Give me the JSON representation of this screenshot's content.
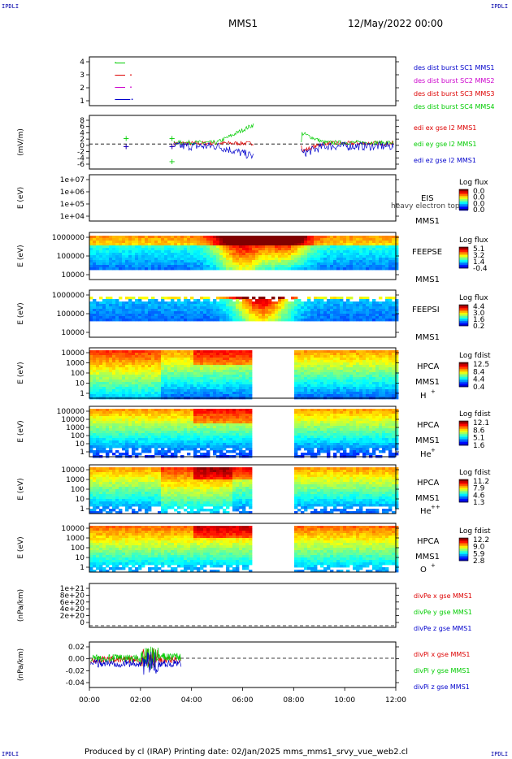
{
  "corners": {
    "tl": "IPDLI",
    "tr": "IPDLI",
    "bl": "IPDLI",
    "br": "IPDLI"
  },
  "header": {
    "title": "MMS1",
    "date": "12/May/2022 00:00"
  },
  "footer": {
    "text": "Produced by cl (IRAP)   Printing date: 02/Jan/2025   mms_mms1_srvy_vue_web2.cl"
  },
  "colors": {
    "red": "#dd0000",
    "green": "#00cc00",
    "blue": "#0000cc",
    "magenta": "#cc00cc",
    "frame": "#000000",
    "label_blue": "#000099"
  },
  "chart_data": [
    {
      "type": "line",
      "id": "dist-burst",
      "ylabel": "",
      "yticks": [
        "4",
        "3",
        "2",
        "1"
      ],
      "ylim": [
        0.5,
        4.5
      ],
      "legend_position": "right",
      "series": [
        {
          "name": "des dist burst SC1 MMS1",
          "color": "#0000cc",
          "value": 1,
          "x": [
            1.0,
            1.4,
            1.6
          ],
          "dot": 1.65
        },
        {
          "name": "des dist burst SC2 MMS2",
          "color": "#cc00cc",
          "value": 2,
          "x": [
            1.0,
            1.4
          ],
          "dot": 1.6
        },
        {
          "name": "des dist burst SC3 MMS3",
          "color": "#dd0000",
          "value": 3,
          "x": [
            1.0,
            1.4
          ],
          "dot": 1.6
        },
        {
          "name": "des dist burst SC4 MMS4",
          "color": "#00cc00",
          "value": 4,
          "x": [
            1.0,
            1.4
          ],
          "dot": 1.0
        }
      ]
    },
    {
      "type": "line",
      "id": "edi-e",
      "ylabel": "(mV/m)",
      "yticks": [
        "8",
        "6",
        "4",
        "2",
        "0",
        "-2",
        "-4",
        "-6"
      ],
      "ylim": [
        -7,
        8
      ],
      "legend_position": "right",
      "series": [
        {
          "name": "edi ex gse l2 MMS1",
          "color": "#dd0000"
        },
        {
          "name": "edi ey gse l2 MMS1",
          "color": "#00cc00"
        },
        {
          "name": "edi ez gse l2 MMS1",
          "color": "#0000cc"
        }
      ]
    },
    {
      "type": "heatmap",
      "id": "eis",
      "ylabel": "E (eV)",
      "yticks": [
        "1e+07",
        "1e+06",
        "1e+05",
        "1e+04"
      ],
      "instrument": [
        "EIS",
        "MMS1"
      ],
      "overlay": "heavy electron top",
      "colorbar_title": "Log flux",
      "colorbar_ticks": [
        "0.0",
        "0.0",
        "0.0",
        "0.0"
      ],
      "empty": true
    },
    {
      "type": "heatmap",
      "id": "feepse",
      "ylabel": "E (eV)",
      "yticks": [
        "1000000",
        "100000",
        "10000"
      ],
      "instrument": [
        "FEEPSE",
        "MMS1"
      ],
      "colorbar_title": "Log flux",
      "colorbar_ticks": [
        "5.1",
        "3.2",
        "1.4",
        "-0.4"
      ]
    },
    {
      "type": "heatmap",
      "id": "feepsi",
      "ylabel": "E (eV)",
      "yticks": [
        "1000000",
        "100000",
        "10000"
      ],
      "instrument": [
        "FEEPSI",
        "MMS1"
      ],
      "colorbar_title": "Log flux",
      "colorbar_ticks": [
        "4.4",
        "3.0",
        "1.6",
        "0.2"
      ]
    },
    {
      "type": "heatmap",
      "id": "hpca-h",
      "ylabel": "E (eV)",
      "yticks": [
        "10000",
        "1000",
        "100",
        "10",
        "1"
      ],
      "instrument": [
        "HPCA",
        "MMS1",
        "H",
        "+"
      ],
      "colorbar_title": "Log fdist",
      "colorbar_ticks": [
        "12.5",
        "8.4",
        "4.4",
        "0.4"
      ],
      "gap": [
        6.3,
        8.0
      ]
    },
    {
      "type": "heatmap",
      "id": "hpca-he",
      "ylabel": "E (eV)",
      "yticks": [
        "100000",
        "10000",
        "1000",
        "100",
        "10",
        "1"
      ],
      "instrument": [
        "HPCA",
        "MMS1",
        "He",
        "+"
      ],
      "colorbar_title": "Log fdist",
      "colorbar_ticks": [
        "12.1",
        "8.6",
        "5.1",
        "1.6"
      ],
      "gap": [
        6.3,
        8.0
      ]
    },
    {
      "type": "heatmap",
      "id": "hpca-hepp",
      "ylabel": "E (eV)",
      "yticks": [
        "10000",
        "1000",
        "100",
        "10",
        "1"
      ],
      "instrument": [
        "HPCA",
        "MMS1",
        "He",
        "++"
      ],
      "colorbar_title": "Log fdist",
      "colorbar_ticks": [
        "11.2",
        "7.9",
        "4.6",
        "1.3"
      ],
      "gap": [
        6.3,
        8.0
      ]
    },
    {
      "type": "heatmap",
      "id": "hpca-o",
      "ylabel": "E (eV)",
      "yticks": [
        "10000",
        "1000",
        "100",
        "10",
        "1"
      ],
      "instrument": [
        "HPCA",
        "MMS1",
        "O",
        "+"
      ],
      "colorbar_title": "Log fdist",
      "colorbar_ticks": [
        "12.2",
        "9.0",
        "5.9",
        "2.8"
      ],
      "gap": [
        6.3,
        8.0
      ]
    },
    {
      "type": "line",
      "id": "divpe",
      "ylabel": "(nPa/km)",
      "yticks": [
        "1e+21",
        "8e+20",
        "6e+20",
        "4e+20",
        "2e+20",
        "0"
      ],
      "ylim": [
        0,
        1e+21
      ],
      "legend_position": "right",
      "series": [
        {
          "name": "divPe x gse MMS1",
          "color": "#dd0000"
        },
        {
          "name": "divPe y gse MMS1",
          "color": "#00cc00"
        },
        {
          "name": "divPe z gse MMS1",
          "color": "#0000cc"
        }
      ]
    },
    {
      "type": "line",
      "id": "divpi",
      "ylabel": "(nPa/km)",
      "yticks": [
        "0.02",
        "0.00",
        "-0.02",
        "-0.04"
      ],
      "ylim": [
        -0.045,
        0.025
      ],
      "legend_position": "right",
      "series": [
        {
          "name": "divPi x gse MMS1",
          "color": "#dd0000"
        },
        {
          "name": "divPi y gse MMS1",
          "color": "#00cc00"
        },
        {
          "name": "divPi z gse MMS1",
          "color": "#0000cc"
        }
      ]
    }
  ],
  "x_axis": {
    "xlim": [
      0,
      12
    ],
    "ticks": [
      "00:00",
      "02:00",
      "04:00",
      "06:00",
      "08:00",
      "10:00",
      "12:00"
    ]
  }
}
